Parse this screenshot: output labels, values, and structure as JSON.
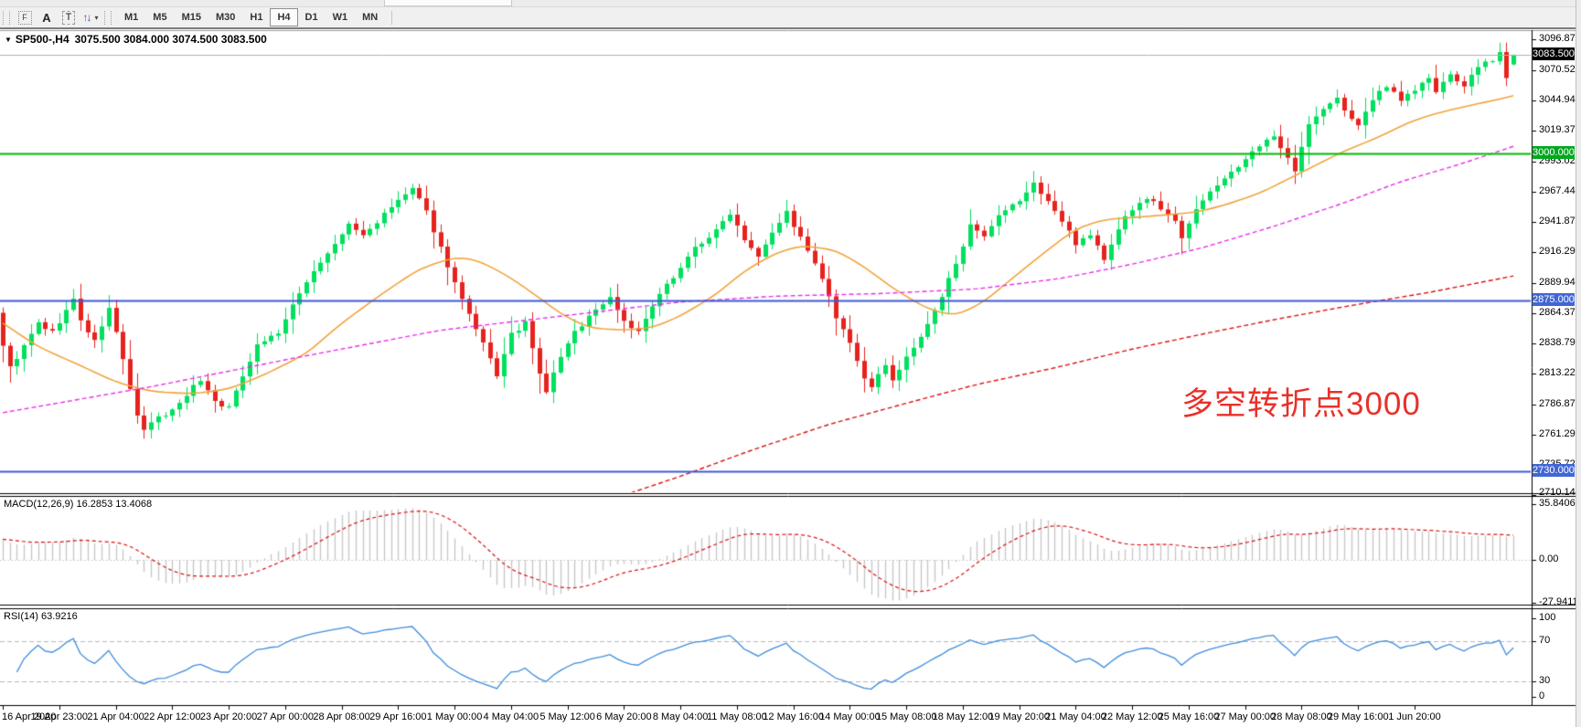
{
  "window": {
    "title_symbol": "SP500-,H4",
    "title_ohlc": "3075.500 3084.000 3074.500 3083.500",
    "dropdown_caret": "▼"
  },
  "toolbar": {
    "tools": [
      {
        "name": "template-tool-button",
        "glyph": "F"
      },
      {
        "name": "font-tool-button",
        "glyph": "A"
      },
      {
        "name": "text-tool-button",
        "glyph": "T"
      },
      {
        "name": "arrows-tool-button",
        "glyph": "↑↓",
        "caret": "▾"
      }
    ],
    "timeframes": [
      "M1",
      "M5",
      "M15",
      "M30",
      "H1",
      "H4",
      "D1",
      "W1",
      "MN"
    ],
    "active_timeframe": "H4"
  },
  "annotation": {
    "text": "多空转折点3000",
    "color": "#e8312a"
  },
  "price_axis": {
    "ticks": [
      "3096.870",
      "3070.520",
      "3044.945",
      "3019.370",
      "2993.020",
      "2967.445",
      "2941.870",
      "2916.295",
      "2889.945",
      "2864.370",
      "2838.795",
      "2813.220",
      "2786.870",
      "2761.295",
      "2735.720",
      "2710.145"
    ],
    "badges": [
      {
        "name": "bid-price-badge",
        "label": "3083.500",
        "value": 3083.5,
        "color": "#000000"
      },
      {
        "name": "level-badge-3000",
        "label": "3000.000",
        "value": 3000,
        "color": "#00a81e"
      },
      {
        "name": "level-badge-2875",
        "label": "2875.000",
        "value": 2875,
        "color": "#4166d5"
      },
      {
        "name": "level-badge-2730",
        "label": "2730.000",
        "value": 2730,
        "color": "#4166d5"
      }
    ]
  },
  "macd_panel": {
    "label": "MACD(12,26,9)",
    "values": "16.2853 13.4068",
    "scale_labels": [
      "35.8406",
      "0.00",
      "-27.9411"
    ]
  },
  "rsi_panel": {
    "label": "RSI(14)",
    "value": "63.9216",
    "levels": [
      "100",
      "70",
      "30",
      "0"
    ]
  },
  "time_axis": {
    "labels": [
      "16 Apr 2020",
      "19 Apr 23:00",
      "21 Apr 04:00",
      "22 Apr 12:00",
      "23 Apr 20:00",
      "27 Apr 00:00",
      "28 Apr 08:00",
      "29 Apr 16:00",
      "1 May 00:00",
      "4 May 04:00",
      "5 May 12:00",
      "6 May 20:00",
      "8 May 04:00",
      "11 May 08:00",
      "12 May 16:00",
      "14 May 00:00",
      "15 May 08:00",
      "18 May 12:00",
      "19 May 20:00",
      "21 May 04:00",
      "22 May 12:00",
      "25 May 16:00",
      "27 May 00:00",
      "28 May 08:00",
      "29 May 16:00",
      "1 Jun 20:00"
    ]
  },
  "chart_data": {
    "type": "candlestick",
    "symbol": "SP500-",
    "period": "H4",
    "bars": 215,
    "current_bar": {
      "open": 3075.5,
      "high": 3084.0,
      "low": 3074.5,
      "close": 3083.5
    },
    "y_axis_range": {
      "top_price": 3096.87,
      "bottom_price": 2711.6
    },
    "x_axis_labels_every_bars": 8,
    "jitter_seed": 9,
    "close_keyframes": [
      [
        0,
        2838
      ],
      [
        1,
        2818
      ],
      [
        3,
        2836
      ],
      [
        5,
        2856
      ],
      [
        7,
        2848
      ],
      [
        10,
        2876
      ],
      [
        11,
        2858
      ],
      [
        13,
        2840
      ],
      [
        15,
        2868
      ],
      [
        16,
        2848
      ],
      [
        17,
        2826
      ],
      [
        18,
        2800
      ],
      [
        19,
        2776
      ],
      [
        20,
        2764
      ],
      [
        21,
        2772
      ],
      [
        24,
        2782
      ],
      [
        26,
        2796
      ],
      [
        28,
        2808
      ],
      [
        30,
        2790
      ],
      [
        32,
        2784
      ],
      [
        34,
        2812
      ],
      [
        36,
        2838
      ],
      [
        39,
        2848
      ],
      [
        41,
        2870
      ],
      [
        43,
        2892
      ],
      [
        45,
        2908
      ],
      [
        47,
        2922
      ],
      [
        49,
        2940
      ],
      [
        51,
        2930
      ],
      [
        54,
        2948
      ],
      [
        56,
        2960
      ],
      [
        58,
        2970
      ],
      [
        60,
        2950
      ],
      [
        62,
        2920
      ],
      [
        64,
        2890
      ],
      [
        66,
        2862
      ],
      [
        68,
        2838
      ],
      [
        70,
        2812
      ],
      [
        72,
        2846
      ],
      [
        74,
        2856
      ],
      [
        76,
        2812
      ],
      [
        77,
        2798
      ],
      [
        79,
        2828
      ],
      [
        81,
        2848
      ],
      [
        83,
        2862
      ],
      [
        86,
        2878
      ],
      [
        88,
        2858
      ],
      [
        90,
        2848
      ],
      [
        92,
        2870
      ],
      [
        94,
        2888
      ],
      [
        96,
        2904
      ],
      [
        98,
        2920
      ],
      [
        101,
        2934
      ],
      [
        103,
        2950
      ],
      [
        105,
        2928
      ],
      [
        107,
        2914
      ],
      [
        109,
        2934
      ],
      [
        111,
        2950
      ],
      [
        113,
        2928
      ],
      [
        116,
        2894
      ],
      [
        118,
        2860
      ],
      [
        120,
        2838
      ],
      [
        122,
        2810
      ],
      [
        123,
        2800
      ],
      [
        125,
        2822
      ],
      [
        126,
        2808
      ],
      [
        128,
        2826
      ],
      [
        131,
        2854
      ],
      [
        133,
        2878
      ],
      [
        135,
        2908
      ],
      [
        137,
        2938
      ],
      [
        139,
        2928
      ],
      [
        141,
        2946
      ],
      [
        144,
        2960
      ],
      [
        146,
        2974
      ],
      [
        148,
        2960
      ],
      [
        150,
        2942
      ],
      [
        152,
        2924
      ],
      [
        154,
        2932
      ],
      [
        156,
        2910
      ],
      [
        157,
        2922
      ],
      [
        159,
        2948
      ],
      [
        162,
        2962
      ],
      [
        164,
        2954
      ],
      [
        166,
        2942
      ],
      [
        167,
        2930
      ],
      [
        169,
        2954
      ],
      [
        171,
        2966
      ],
      [
        173,
        2980
      ],
      [
        176,
        2994
      ],
      [
        178,
        3006
      ],
      [
        180,
        3014
      ],
      [
        182,
        2998
      ],
      [
        183,
        2986
      ],
      [
        185,
        3024
      ],
      [
        187,
        3038
      ],
      [
        189,
        3046
      ],
      [
        192,
        3022
      ],
      [
        194,
        3046
      ],
      [
        196,
        3058
      ],
      [
        198,
        3046
      ],
      [
        200,
        3054
      ],
      [
        202,
        3064
      ],
      [
        203,
        3052
      ],
      [
        205,
        3066
      ],
      [
        207,
        3058
      ],
      [
        209,
        3072
      ],
      [
        211,
        3080
      ],
      [
        212,
        3086
      ],
      [
        213,
        3064
      ],
      [
        214,
        3083.5
      ]
    ],
    "moving_averages": [
      {
        "name": "ma-fast-orange",
        "color": "#f2a33c",
        "style": "solid",
        "width": 1.6,
        "keyframes": [
          [
            0,
            2856
          ],
          [
            5,
            2836
          ],
          [
            11,
            2820
          ],
          [
            16,
            2806
          ],
          [
            21,
            2798
          ],
          [
            27,
            2796
          ],
          [
            32,
            2800
          ],
          [
            37,
            2812
          ],
          [
            43,
            2830
          ],
          [
            48,
            2856
          ],
          [
            54,
            2882
          ],
          [
            59,
            2902
          ],
          [
            64,
            2912
          ],
          [
            67,
            2910
          ],
          [
            71,
            2898
          ],
          [
            75,
            2882
          ],
          [
            79,
            2864
          ],
          [
            83,
            2852
          ],
          [
            88,
            2850
          ],
          [
            92,
            2852
          ],
          [
            96,
            2862
          ],
          [
            101,
            2880
          ],
          [
            105,
            2900
          ],
          [
            109,
            2914
          ],
          [
            113,
            2922
          ],
          [
            118,
            2918
          ],
          [
            122,
            2904
          ],
          [
            126,
            2886
          ],
          [
            131,
            2868
          ],
          [
            135,
            2862
          ],
          [
            139,
            2874
          ],
          [
            143,
            2894
          ],
          [
            148,
            2918
          ],
          [
            152,
            2936
          ],
          [
            156,
            2944
          ],
          [
            161,
            2946
          ],
          [
            165,
            2948
          ],
          [
            169,
            2950
          ],
          [
            173,
            2956
          ],
          [
            178,
            2966
          ],
          [
            182,
            2978
          ],
          [
            186,
            2990
          ],
          [
            190,
            3002
          ],
          [
            195,
            3014
          ],
          [
            199,
            3026
          ],
          [
            203,
            3034
          ],
          [
            208,
            3041
          ],
          [
            212,
            3046
          ],
          [
            214,
            3049
          ]
        ]
      },
      {
        "name": "ma-mid-magenta",
        "color": "#ea2fea",
        "style": "dashed",
        "width": 1.4,
        "keyframes": [
          [
            0,
            2780
          ],
          [
            21,
            2802
          ],
          [
            41,
            2826
          ],
          [
            62,
            2850
          ],
          [
            82,
            2864
          ],
          [
            96,
            2874
          ],
          [
            110,
            2879
          ],
          [
            124,
            2881
          ],
          [
            138,
            2885
          ],
          [
            150,
            2894
          ],
          [
            160,
            2906
          ],
          [
            170,
            2920
          ],
          [
            180,
            2938
          ],
          [
            190,
            2958
          ],
          [
            198,
            2976
          ],
          [
            206,
            2990
          ],
          [
            214,
            3006
          ]
        ]
      },
      {
        "name": "ma-slow-red",
        "color": "#dc1414",
        "style": "dashed",
        "width": 1.4,
        "keyframes": [
          [
            86,
            2706
          ],
          [
            96,
            2726
          ],
          [
            106,
            2748
          ],
          [
            117,
            2770
          ],
          [
            128,
            2788
          ],
          [
            138,
            2804
          ],
          [
            149,
            2818
          ],
          [
            160,
            2834
          ],
          [
            171,
            2848
          ],
          [
            181,
            2860
          ],
          [
            192,
            2872
          ],
          [
            202,
            2882
          ],
          [
            214,
            2896
          ]
        ]
      }
    ],
    "horizontal_lines": [
      {
        "price": 3000,
        "color": "#00bb00",
        "width": 2
      },
      {
        "price": 2875,
        "color": "#3f5bd5",
        "width": 2
      },
      {
        "price": 2730,
        "color": "#3f5bd5",
        "width": 2
      }
    ],
    "bid_line": {
      "price": 3083.5,
      "color": "#a9b2bc",
      "width": 1
    },
    "colors": {
      "up": "#00e05e",
      "down": "#e6231e",
      "macd_hist": "#c8c8c8",
      "macd_signal": "#d91414",
      "rsi_line": "#3f8edc"
    },
    "macd": {
      "fast": 12,
      "slow": 26,
      "signal": 9,
      "main_value": 16.2853,
      "signal_value": 13.4068,
      "scale_max": 35.8406,
      "scale_min": -27.9411
    },
    "rsi": {
      "period": 14,
      "value": 63.9216,
      "upper": 70,
      "lower": 30
    }
  }
}
